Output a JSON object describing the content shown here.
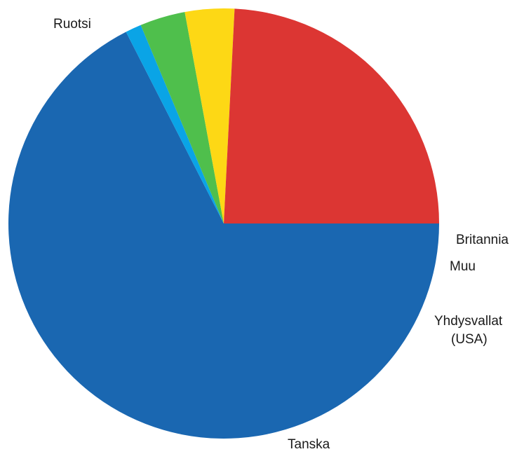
{
  "chart_data": {
    "type": "pie",
    "title": "",
    "slices": [
      {
        "label": "Ruotsi",
        "value": 67.5,
        "color": "#1a67b1"
      },
      {
        "label": "Britannia",
        "value": 1.2,
        "color": "#0aa4e6"
      },
      {
        "label": "Muu",
        "value": 3.4,
        "color": "#4fbf4c"
      },
      {
        "label": "Yhdysvallat (USA)",
        "label_lines": [
          "Yhdysvallat",
          "(USA)"
        ],
        "value": 3.7,
        "color": "#fdd815"
      },
      {
        "label": "Tanska",
        "value": 24.2,
        "color": "#dc3633"
      }
    ],
    "start": "3 o'clock",
    "direction": "clockwise",
    "legend": "none",
    "labels": "outside slices"
  }
}
